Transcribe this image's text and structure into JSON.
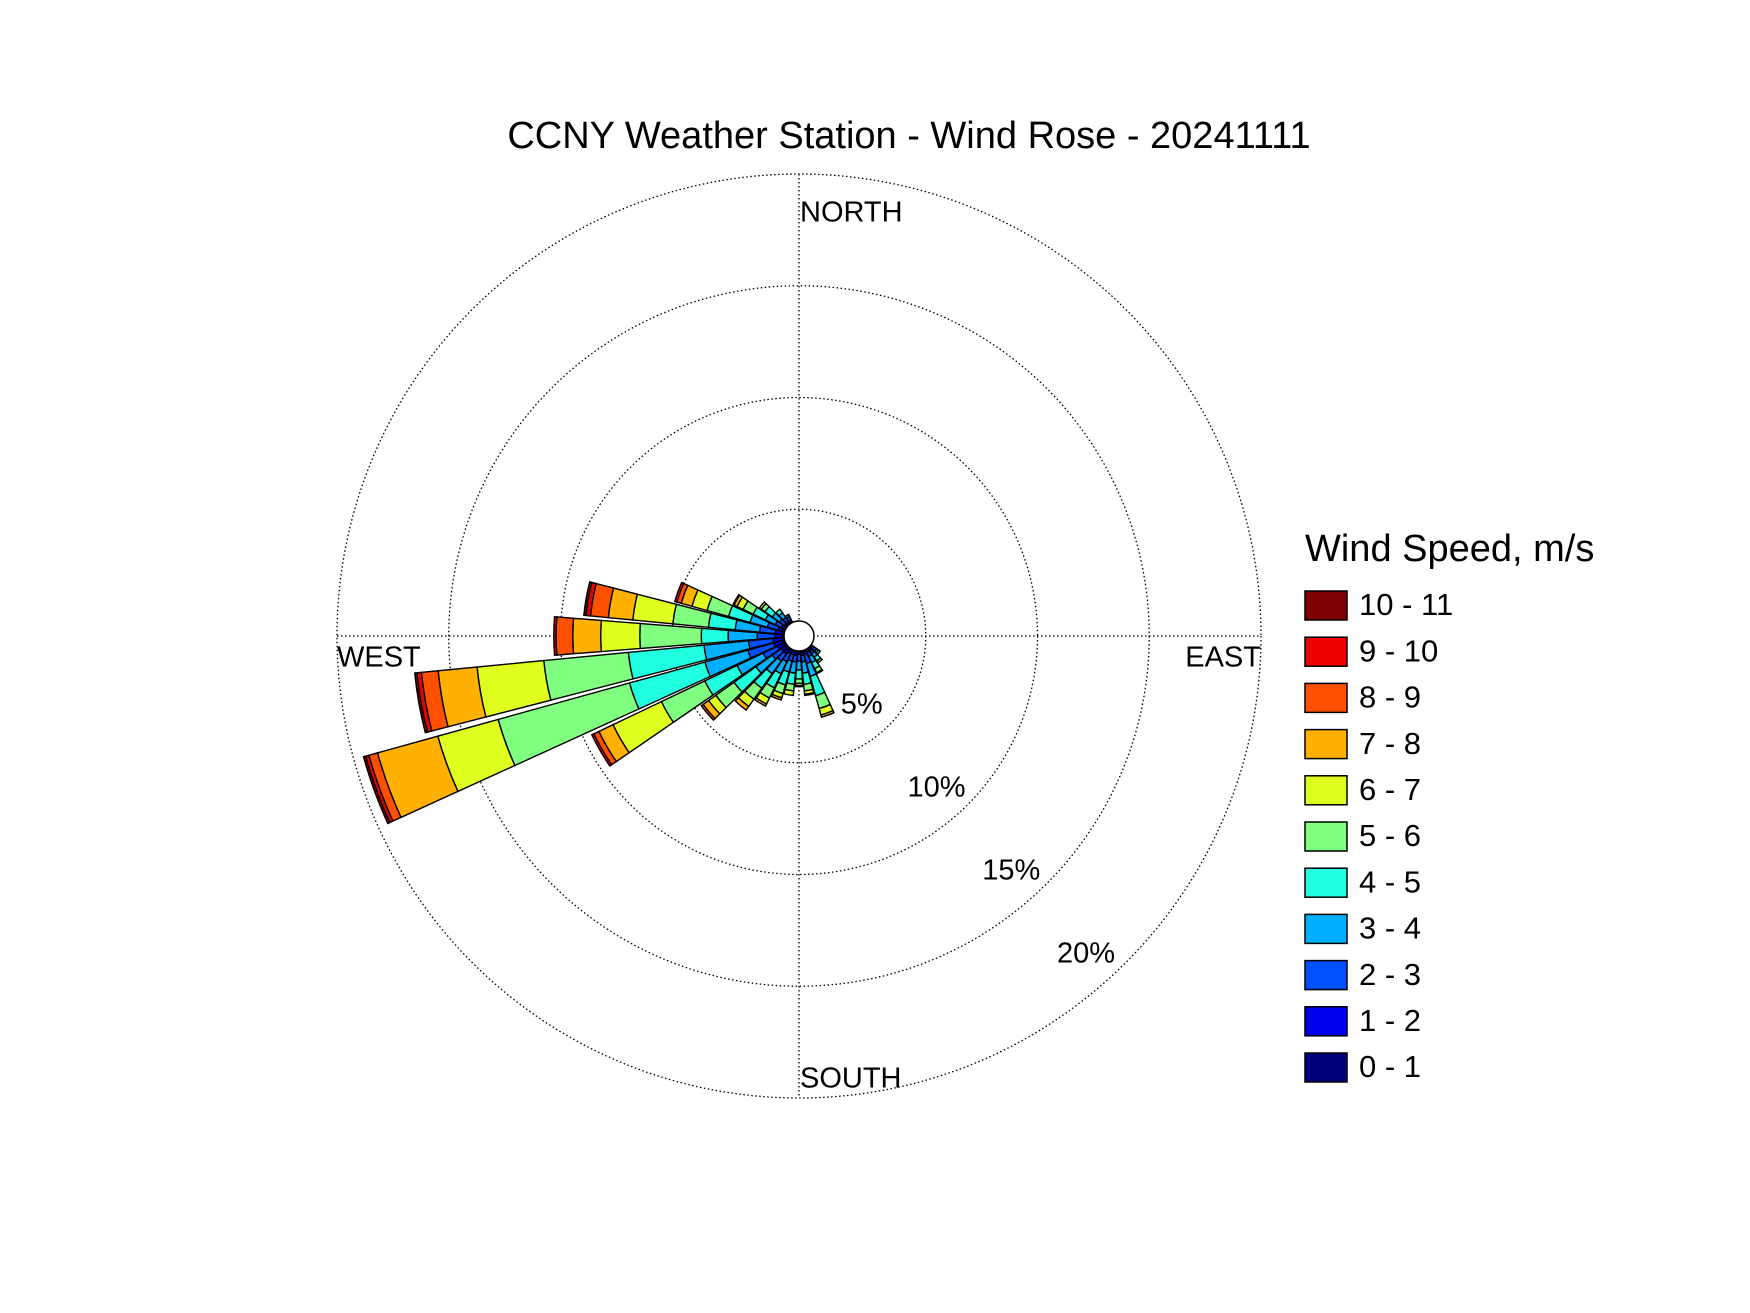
{
  "chart_data": {
    "type": "windrose",
    "title": "CCNY Weather Station - Wind Rose - 20241111",
    "direction_labels": {
      "north": "NORTH",
      "east": "EAST",
      "south": "SOUTH",
      "west": "WEST"
    },
    "legend_title": "Wind Speed, m/s",
    "directions": [
      130,
      140,
      150,
      160,
      170,
      180,
      190,
      200,
      210,
      220,
      230,
      240,
      250,
      260,
      270,
      280,
      290,
      300,
      310,
      320,
      330
    ],
    "rlim": [
      0,
      20
    ],
    "rticks": [
      {
        "value": 5,
        "label": "5%"
      },
      {
        "value": 10,
        "label": "10%"
      },
      {
        "value": 15,
        "label": "15%"
      },
      {
        "value": 20,
        "label": "20%"
      }
    ],
    "grid": true,
    "series": [
      {
        "name": "0 - 1",
        "color": "#00007f",
        "values": [
          0.05,
          0.05,
          0.05,
          0.05,
          0.05,
          0.05,
          0.05,
          0.05,
          0.05,
          0.1,
          0.1,
          0.1,
          0.1,
          0.1,
          0.1,
          0.1,
          0.1,
          0.05,
          0.05,
          0.05,
          0.05
        ]
      },
      {
        "name": "1 - 2",
        "color": "#0000f0",
        "values": [
          0.1,
          0.1,
          0.1,
          0.15,
          0.15,
          0.1,
          0.15,
          0.15,
          0.15,
          0.2,
          0.2,
          0.3,
          0.4,
          0.4,
          0.3,
          0.3,
          0.2,
          0.15,
          0.1,
          0.1,
          0.1
        ]
      },
      {
        "name": "2 - 3",
        "color": "#0050ff",
        "values": [
          0.15,
          0.15,
          0.2,
          0.4,
          0.3,
          0.3,
          0.3,
          0.3,
          0.4,
          0.4,
          0.5,
          0.7,
          1.2,
          1.1,
          0.8,
          0.7,
          0.5,
          0.3,
          0.25,
          0.2,
          0.15
        ]
      },
      {
        "name": "3 - 4",
        "color": "#00b0ff",
        "values": [
          0.1,
          0.2,
          0.3,
          0.6,
          0.5,
          0.4,
          0.5,
          0.5,
          0.6,
          0.7,
          0.9,
          1.3,
          2.0,
          2.0,
          1.3,
          1.1,
          0.8,
          0.5,
          0.4,
          0.25,
          0.1
        ]
      },
      {
        "name": "4 - 5",
        "color": "#20ffdf",
        "values": [
          0.1,
          0.2,
          0.3,
          0.9,
          0.5,
          0.4,
          0.5,
          0.6,
          0.7,
          0.8,
          1.2,
          1.6,
          3.5,
          3.4,
          1.2,
          1.2,
          1.0,
          0.6,
          0.4,
          0.2,
          0
        ]
      },
      {
        "name": "5 - 6",
        "color": "#80ff80",
        "values": [
          0,
          0.1,
          0.2,
          0.6,
          0.3,
          0.2,
          0.3,
          0.4,
          0.5,
          0.6,
          1.0,
          2.15,
          6.1,
          3.8,
          2.75,
          1.6,
          1.0,
          0.5,
          0.2,
          0,
          0
        ]
      },
      {
        "name": "6 - 7",
        "color": "#dfff20",
        "values": [
          0,
          0,
          0.05,
          0.3,
          0.15,
          0.1,
          0.2,
          0.2,
          0.3,
          0.4,
          0.4,
          2.4,
          2.8,
          3.0,
          1.75,
          1.8,
          0.7,
          0.3,
          0.1,
          0,
          0
        ]
      },
      {
        "name": "7 - 8",
        "color": "#ffb000",
        "values": [
          0,
          0,
          0,
          0.1,
          0.05,
          0.05,
          0,
          0.1,
          0.1,
          0.2,
          0.3,
          0.7,
          2.8,
          1.75,
          1.25,
          1.1,
          0.5,
          0.15,
          0,
          0,
          0
        ]
      },
      {
        "name": "8 - 9",
        "color": "#ff5000",
        "values": [
          0,
          0,
          0,
          0,
          0,
          0,
          0,
          0,
          0,
          0,
          0.1,
          0.25,
          0.4,
          0.75,
          0.75,
          0.8,
          0.2,
          0.05,
          0,
          0,
          0
        ]
      },
      {
        "name": "9 - 10",
        "color": "#ef0000",
        "values": [
          0,
          0,
          0,
          0,
          0,
          0,
          0,
          0,
          0,
          0,
          0,
          0.1,
          0.15,
          0.2,
          0.1,
          0.2,
          0.1,
          0,
          0,
          0,
          0
        ]
      },
      {
        "name": "10 - 11",
        "color": "#7f0000",
        "values": [
          0,
          0,
          0,
          0,
          0,
          0,
          0,
          0,
          0,
          0,
          0,
          0,
          0.1,
          0.1,
          0,
          0.1,
          0,
          0,
          0,
          0,
          0
        ]
      }
    ]
  }
}
